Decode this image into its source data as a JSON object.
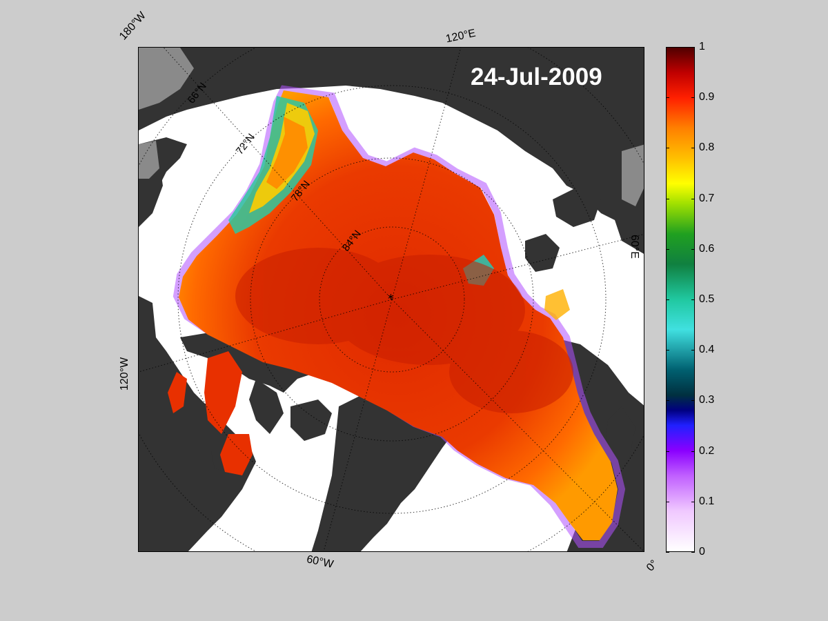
{
  "map": {
    "date": "24-Jul-2009",
    "meridian_labels": {
      "w180": "180°W",
      "e120": "120°E",
      "e60": "60°E",
      "w120": "120°W",
      "w60": "60°W",
      "zero": "0°"
    },
    "latitude_labels": {
      "lat66": "66°N",
      "lat72": "72°N",
      "lat78": "78°N",
      "lat84": "84°N"
    },
    "pole_marker": "*"
  },
  "colorbar": {
    "min": 0,
    "max": 1,
    "ticks": [
      "0",
      "0.1",
      "0.2",
      "0.3",
      "0.4",
      "0.5",
      "0.6",
      "0.7",
      "0.8",
      "0.9",
      "1"
    ],
    "tick_values": [
      0,
      0.1,
      0.2,
      0.3,
      0.4,
      0.5,
      0.6,
      0.7,
      0.8,
      0.9,
      1
    ],
    "colors": {
      "land": "#333333",
      "water": "#ffffff",
      "background": "#cccccc",
      "ice_high": "#e82a00",
      "ice_mid": "#ff7a00",
      "ice_low": "#18e0c8"
    }
  }
}
